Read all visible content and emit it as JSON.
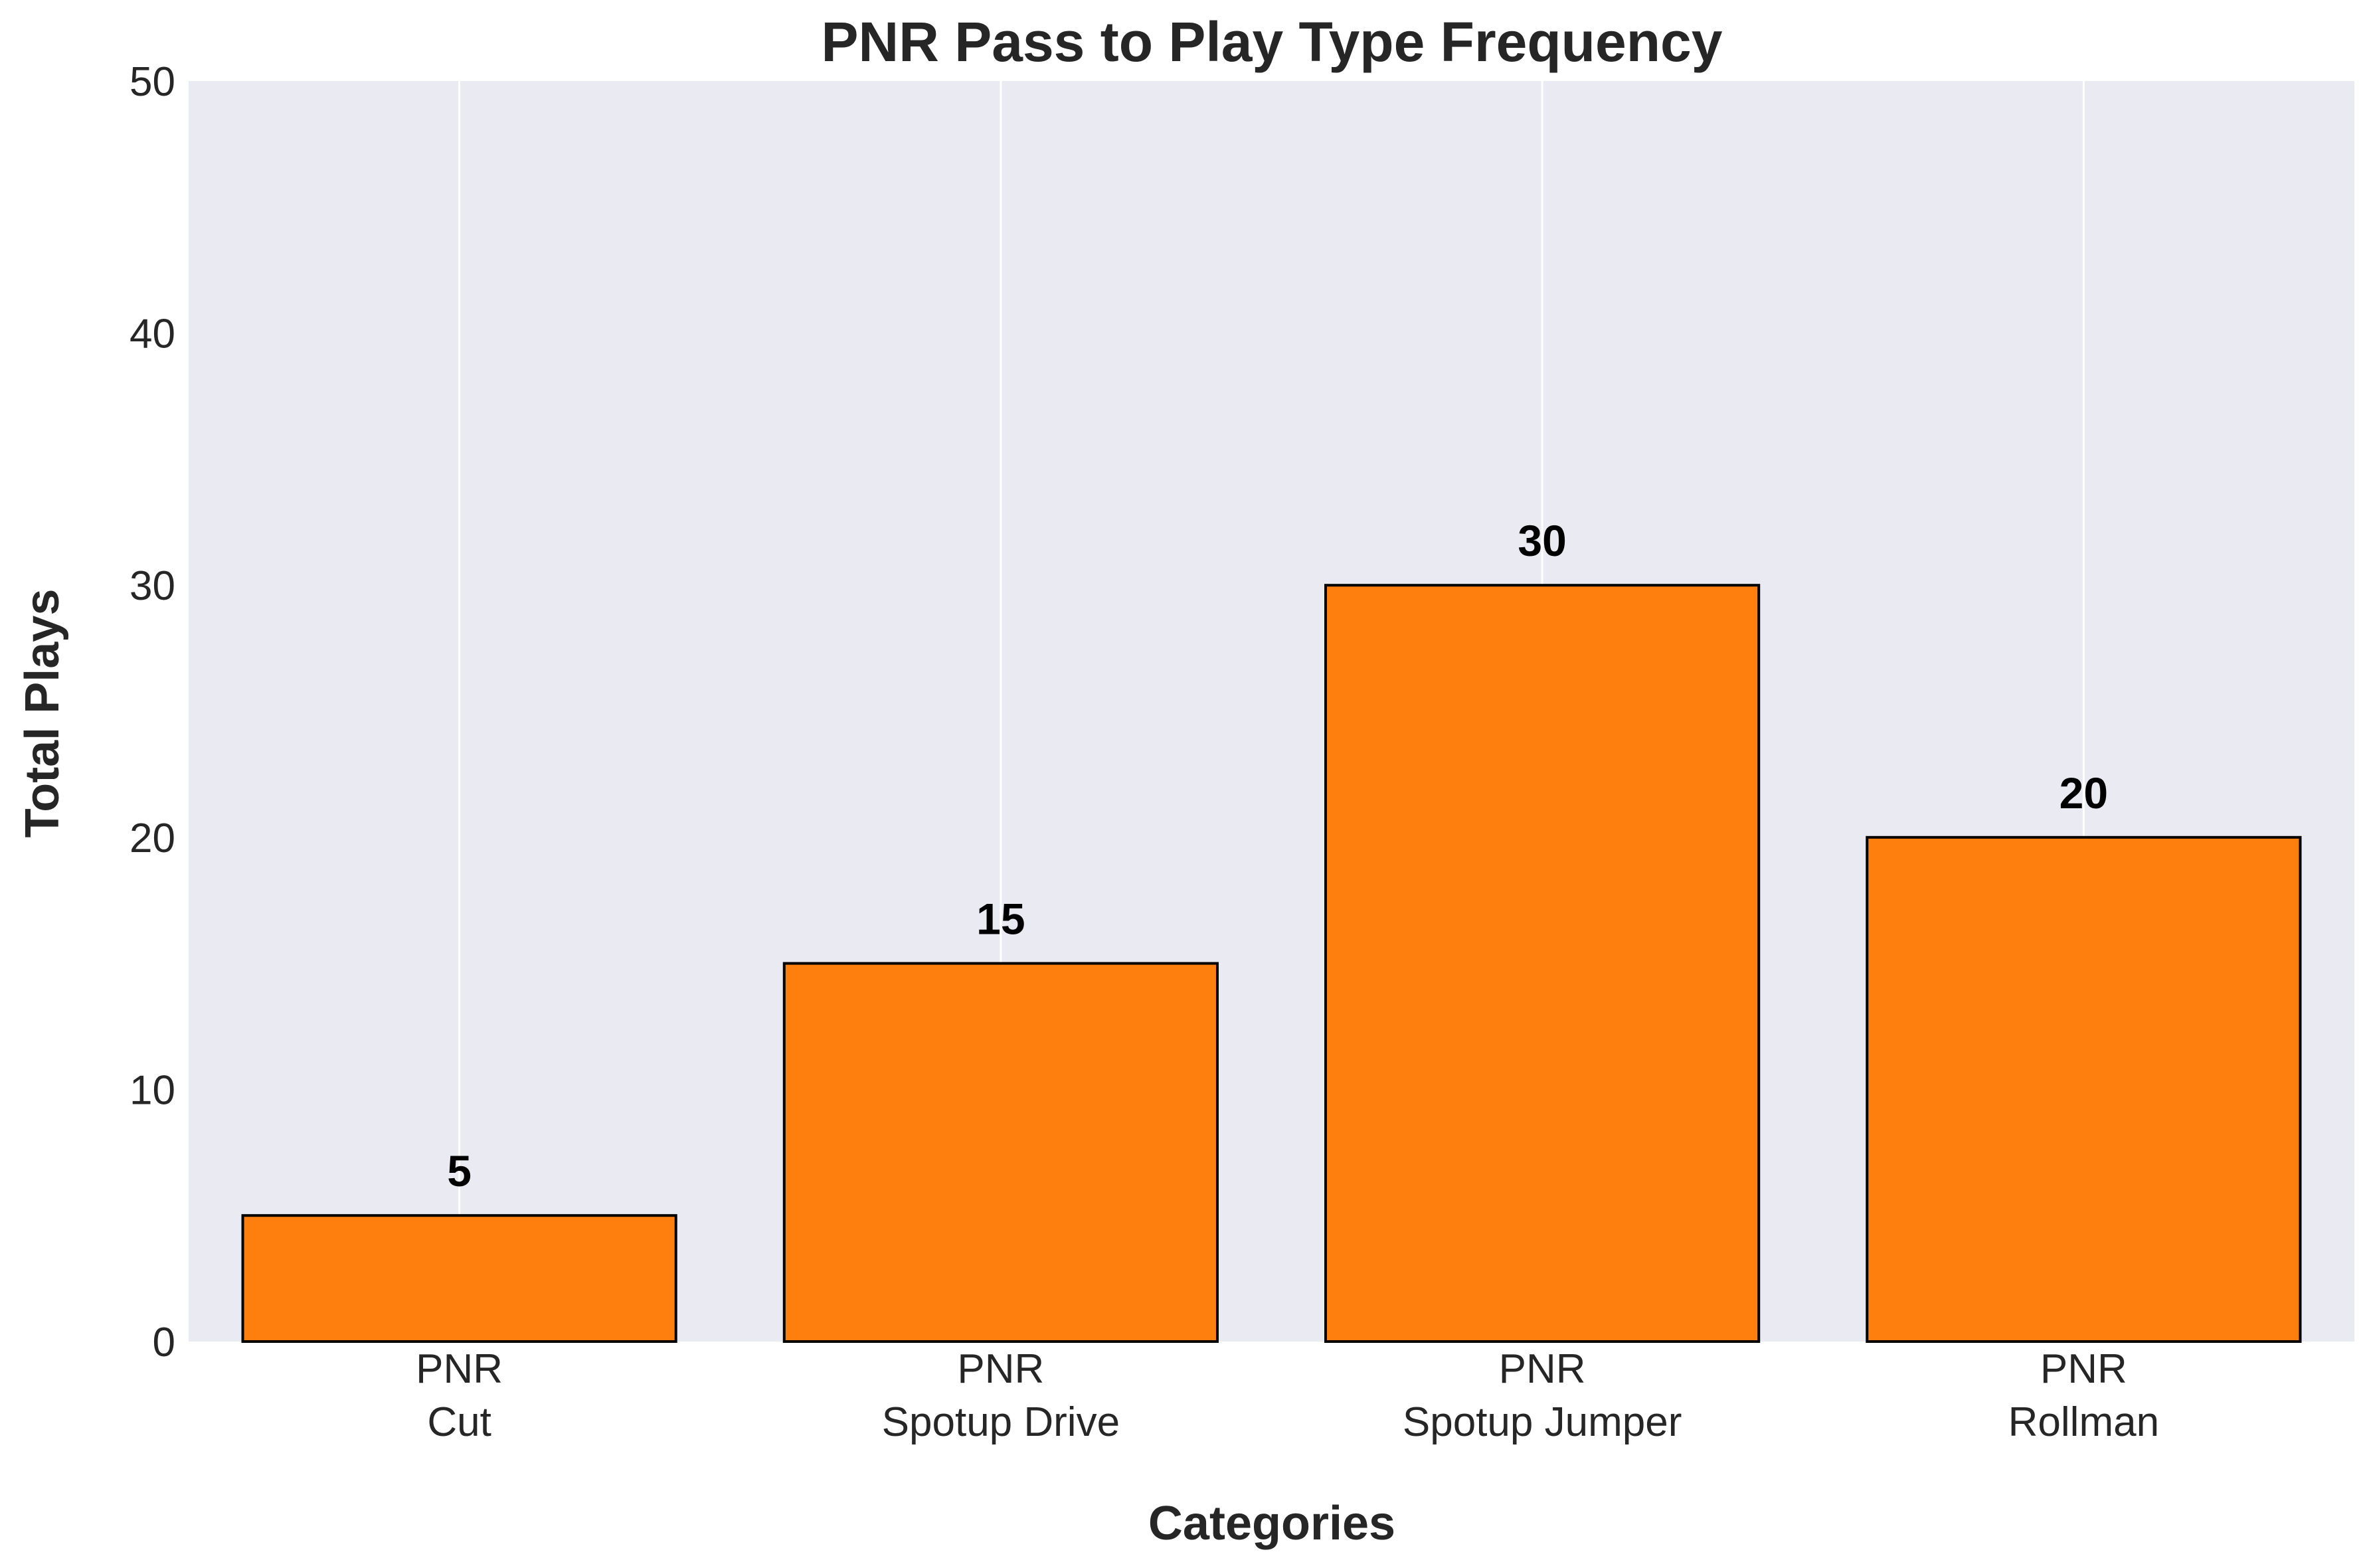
{
  "chart_data": {
    "type": "bar",
    "title": "PNR Pass to Play Type Frequency",
    "xlabel": "Categories",
    "ylabel": "Total Plays",
    "categories": [
      [
        "PNR",
        "Cut"
      ],
      [
        "PNR",
        "Spotup Drive"
      ],
      [
        "PNR",
        "Spotup Jumper"
      ],
      [
        "PNR",
        "Rollman"
      ]
    ],
    "values": [
      5,
      15,
      30,
      20
    ],
    "data_labels": [
      "5",
      "15",
      "30",
      "20"
    ],
    "ylim": [
      0,
      50
    ],
    "yticks": [
      0,
      10,
      20,
      30,
      40,
      50
    ],
    "grid": "vertical",
    "legend": "none",
    "colors": {
      "bar": "#ff7f0e",
      "bar_edge": "#000000",
      "plot_background": "#eaeaf2",
      "grid": "#ffffff"
    }
  }
}
